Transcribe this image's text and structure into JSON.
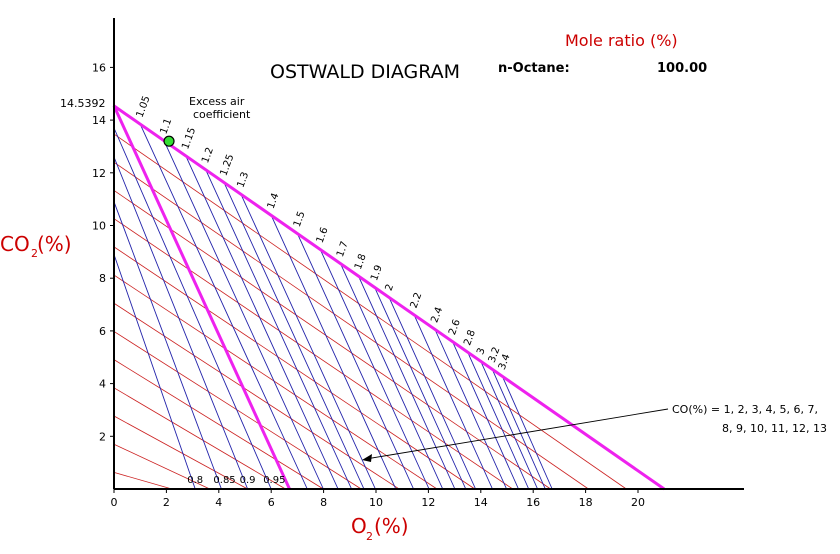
{
  "chart_data": {
    "type": "line",
    "title": "OSTWALD DIAGRAM",
    "xlabel": {
      "main": "O",
      "sub": "2",
      "unit": "(%)"
    },
    "ylabel": {
      "main": "CO",
      "sub": "2",
      "unit": "(%)"
    },
    "xlim": [
      0,
      23.5
    ],
    "ylim": [
      0,
      17.5
    ],
    "x_ticks": [
      "0",
      "2",
      "4",
      "6",
      "8",
      "10",
      "12",
      "14",
      "16",
      "18",
      "20"
    ],
    "y_ticks": [
      "2",
      "4",
      "6",
      "8",
      "10",
      "12",
      "14",
      "16"
    ],
    "co2_max_label": "14.5392",
    "co2_max": 14.5392,
    "o2_max": 21,
    "fuel": {
      "label": "n-Octane:",
      "value": "100.00"
    },
    "mole_ratio_label": "Mole ratio (%)",
    "excess_air_title": [
      "Excess air",
      "coefficient"
    ],
    "excess_air_lines": [
      {
        "label": "1.05",
        "value": 1.05
      },
      {
        "label": "1.1",
        "value": 1.1
      },
      {
        "label": "1.15",
        "value": 1.15
      },
      {
        "label": "1.2",
        "value": 1.2
      },
      {
        "label": "1.25",
        "value": 1.25
      },
      {
        "label": "1.3",
        "value": 1.3
      },
      {
        "label": "1.4",
        "value": 1.4
      },
      {
        "label": "1.5",
        "value": 1.5
      },
      {
        "label": "1.6",
        "value": 1.6
      },
      {
        "label": "1.7",
        "value": 1.7
      },
      {
        "label": "1.8",
        "value": 1.8
      },
      {
        "label": "1.9",
        "value": 1.9
      },
      {
        "label": "2",
        "value": 2.0
      },
      {
        "label": "2.2",
        "value": 2.2
      },
      {
        "label": "2.4",
        "value": 2.4
      },
      {
        "label": "2.6",
        "value": 2.6
      },
      {
        "label": "2.8",
        "value": 2.8
      },
      {
        "label": "3",
        "value": 3.0
      },
      {
        "label": "3.2",
        "value": 3.2
      },
      {
        "label": "3.4",
        "value": 3.4
      }
    ],
    "rich_lines": [
      {
        "label": "0.8",
        "value": 0.8
      },
      {
        "label": "0.85",
        "value": 0.85
      },
      {
        "label": "0.9",
        "value": 0.9
      },
      {
        "label": "0.95",
        "value": 0.95
      }
    ],
    "co_lines": [
      1,
      2,
      3,
      4,
      5,
      6,
      7,
      8,
      9,
      10,
      11,
      12,
      13
    ],
    "co_note": [
      "CO(%) = 1, 2, 3, 4, 5, 6, 7,",
      "8, 9, 10, 11, 12, 13"
    ],
    "marker": {
      "x": 2.1,
      "y": 13.2,
      "color": "#33dd33"
    },
    "colors": {
      "boundary": "#ee22ee",
      "excess_lines": "#2222aa",
      "co_lines": "#cc2222",
      "axis_title": "#cc0000"
    },
    "grid": false
  }
}
